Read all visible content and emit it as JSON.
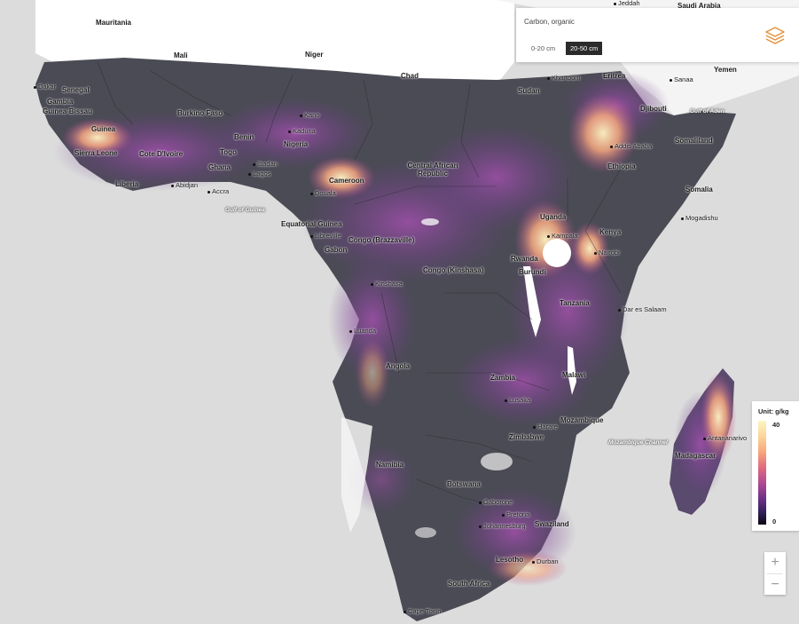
{
  "layer_panel": {
    "title": "Carbon, organic",
    "depths": [
      {
        "label": "0-20 cm",
        "active": false
      },
      {
        "label": "20-50 cm",
        "active": true
      }
    ],
    "layers_icon": "layers-stack-icon",
    "accent_color": "#e3913a"
  },
  "legend": {
    "title": "Unit: g/kg",
    "max": "40",
    "min": "0",
    "ramp_colors": [
      "#fdf5c2",
      "#f8a77c",
      "#b04a93",
      "#35205c",
      "#0a0614"
    ]
  },
  "zoom": {
    "in_label": "+",
    "out_label": "−"
  },
  "map": {
    "countries": [
      "Mauritania",
      "Mali",
      "Niger",
      "Chad",
      "Sudan",
      "Senegal",
      "Gambia",
      "Guinea-Bissau",
      "Guinea",
      "Sierra Leone",
      "Liberia",
      "Cote D'Ivoire",
      "Burkino Faso",
      "Ghana",
      "Togo",
      "Benin",
      "Nigeria",
      "Cameroon",
      "Central African Republic",
      "Equatorial Guinea",
      "Gabon",
      "Congo (Brazzaville)",
      "Congo (Kinshasa)",
      "Eritrea",
      "Djibouti",
      "Ethiopia",
      "Somaliland",
      "Somalia",
      "Uganda",
      "Kenya",
      "Rwanda",
      "Burundi",
      "Tanzania",
      "Angola",
      "Zambia",
      "Malawi",
      "Mozambique",
      "Zimbabwe",
      "Namibia",
      "Botswana",
      "South Africa",
      "Lesotho",
      "Swaziland",
      "Madagascar",
      "Saudi Arabia",
      "Yemen"
    ],
    "cities": [
      "Jeddah",
      "Dakar",
      "Khartoum",
      "Sanaa",
      "Kano",
      "Kaduna",
      "Ibadan",
      "Lagos",
      "Abidjan",
      "Accra",
      "Douala",
      "Libreville",
      "Kinshasa",
      "Addis Ababa",
      "Kampala",
      "Nairobi",
      "Mogadishu",
      "Dar es Salaam",
      "Luanda",
      "Lusaka",
      "Harare",
      "Gaborone",
      "Pretoria",
      "Johannesburg",
      "Durban",
      "Cape Town",
      "Antananarivo"
    ],
    "waters": [
      "Gulf of Guinea",
      "Gulf of Aden",
      "Mozambique Channel"
    ]
  }
}
